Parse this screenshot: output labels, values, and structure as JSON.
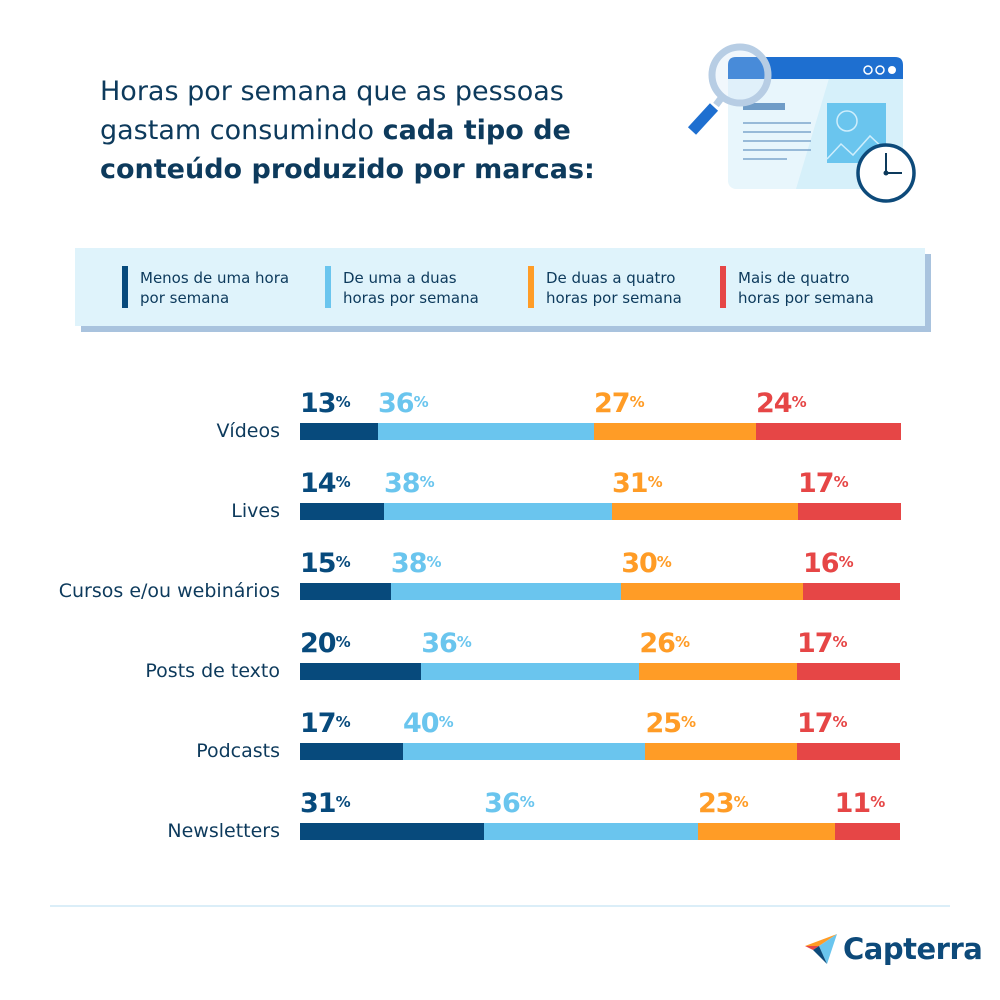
{
  "header": {
    "title_regular": "Horas por semana que as pessoas gastam consumindo ",
    "title_bold": "cada tipo de conteúdo produzido por marcas:"
  },
  "illustration": {
    "icons": [
      "browser-window-icon",
      "magnifier-icon",
      "clock-icon",
      "image-icon"
    ]
  },
  "chart_data": {
    "type": "bar",
    "orientation": "horizontal",
    "stacked": true,
    "categories": [
      "Vídeos",
      "Lives",
      "Cursos e/ou webinários",
      "Posts de texto",
      "Podcasts",
      "Newsletters"
    ],
    "series": [
      {
        "name": "Menos de uma hora por semana",
        "color": "#074a7c",
        "values": [
          13,
          14,
          15,
          20,
          17,
          31
        ]
      },
      {
        "name": "De uma a duas horas por semana",
        "color": "#6ac5ee",
        "values": [
          36,
          38,
          38,
          36,
          40,
          36
        ]
      },
      {
        "name": "De duas a quatro horas por semana",
        "color": "#ff9c26",
        "values": [
          27,
          31,
          30,
          26,
          25,
          23
        ]
      },
      {
        "name": "Mais de quatro horas por semana",
        "color": "#e64646",
        "values": [
          24,
          17,
          16,
          17,
          17,
          11
        ]
      }
    ],
    "unit": "%",
    "legend": "top",
    "grid": false
  },
  "footer": {
    "brand": "Capterra"
  }
}
